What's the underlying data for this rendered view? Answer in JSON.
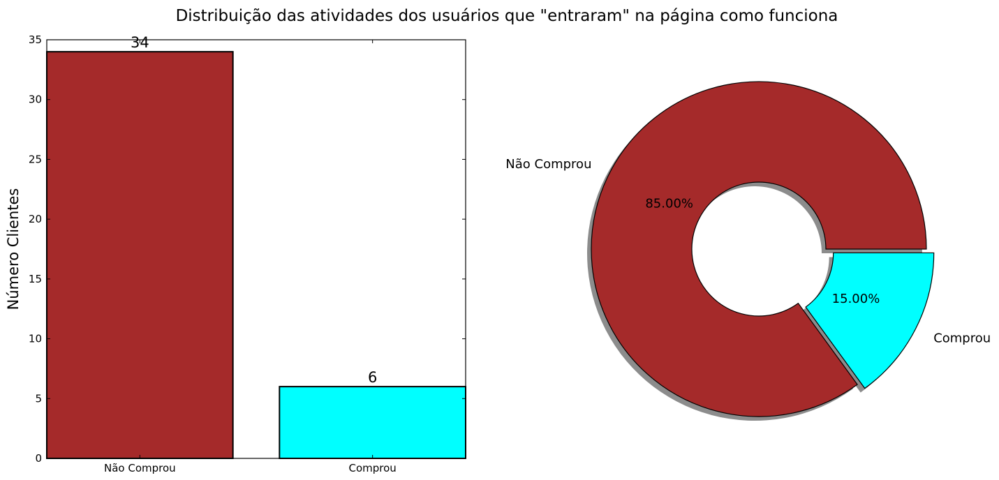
{
  "title": "Distribuição das atividades dos usuários que \"entraram\" na página como funciona",
  "chart_data": [
    {
      "type": "bar",
      "categories": [
        "Não Comprou",
        "Comprou"
      ],
      "values": [
        34,
        6
      ],
      "value_labels": [
        "34",
        "6"
      ],
      "colors": [
        "#a52a2a",
        "#00ffff"
      ],
      "ylabel": "Número Clientes",
      "xlabel": "",
      "ylim": [
        0,
        35
      ],
      "yticks": [
        0,
        5,
        10,
        15,
        20,
        25,
        30,
        35
      ],
      "ytick_labels": [
        "0",
        "5",
        "10",
        "15",
        "20",
        "25",
        "30",
        "35"
      ],
      "grid": false
    },
    {
      "type": "pie",
      "labels": [
        "Não Comprou",
        "Comprou"
      ],
      "values": [
        85,
        15
      ],
      "pct_labels": [
        "85.00%",
        "15.00%"
      ],
      "colors": [
        "#a52a2a",
        "#00ffff"
      ],
      "donut": true,
      "shadow": true,
      "explode": [
        0,
        0.05
      ]
    }
  ]
}
